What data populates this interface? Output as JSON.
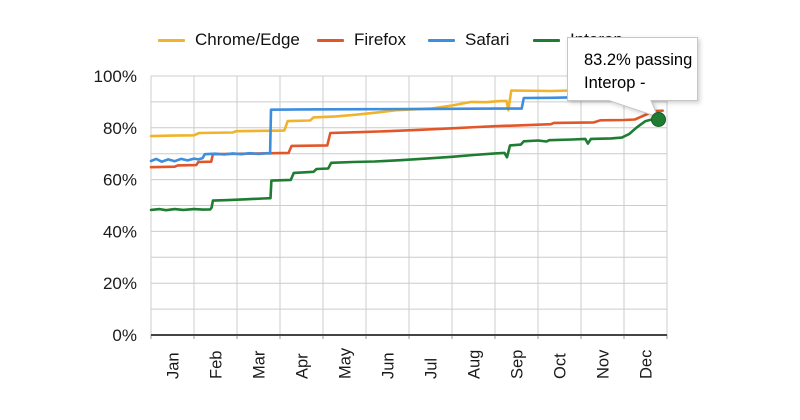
{
  "legend": {
    "items": [
      {
        "label": "Chrome/Edge",
        "color": "#F1B32B"
      },
      {
        "label": "Firefox",
        "color": "#E2572A"
      },
      {
        "label": "Safari",
        "color": "#3E8EDE"
      },
      {
        "label": "Interop",
        "color": "#1E7D32"
      }
    ]
  },
  "tooltip": {
    "line1": "83.2% passing",
    "line2": "Interop -"
  },
  "chart_data": {
    "type": "line",
    "title": "",
    "xlabel": "",
    "ylabel": "",
    "x_categories": [
      "Jan",
      "Feb",
      "Mar",
      "Apr",
      "May",
      "Jun",
      "Jul",
      "Aug",
      "Sep",
      "Oct",
      "Nov",
      "Dec"
    ],
    "y_tick_labels": [
      "0%",
      "20%",
      "40%",
      "60%",
      "80%",
      "100%"
    ],
    "y_tick_values": [
      0,
      20,
      40,
      60,
      80,
      100
    ],
    "ylim": [
      0,
      100
    ],
    "xlim_months": [
      0,
      12
    ],
    "grid": {
      "horizontal_step_pct": 10,
      "vertical_every_month": true,
      "legend_position": "top"
    },
    "series": [
      {
        "name": "Chrome/Edge",
        "color": "#F1B32B",
        "points": [
          [
            0,
            76.8
          ],
          [
            0.5,
            77.0
          ],
          [
            1.0,
            77.1
          ],
          [
            1.12,
            78.0
          ],
          [
            1.9,
            78.2
          ],
          [
            1.98,
            78.7
          ],
          [
            3.1,
            78.9
          ],
          [
            3.18,
            82.6
          ],
          [
            3.7,
            82.8
          ],
          [
            3.78,
            84.0
          ],
          [
            4.3,
            84.4
          ],
          [
            4.8,
            85.1
          ],
          [
            5.3,
            86.0
          ],
          [
            5.7,
            86.8
          ],
          [
            6.5,
            87.4
          ],
          [
            7.0,
            88.6
          ],
          [
            7.45,
            90.0
          ],
          [
            7.8,
            89.9
          ],
          [
            8.1,
            90.3
          ],
          [
            8.27,
            90.4
          ],
          [
            8.31,
            86.8
          ],
          [
            8.38,
            94.4
          ],
          [
            9.3,
            94.2
          ],
          [
            10.2,
            94.6
          ],
          [
            11.9,
            95.0
          ]
        ]
      },
      {
        "name": "Firefox",
        "color": "#E2572A",
        "points": [
          [
            0,
            64.8
          ],
          [
            0.55,
            65.0
          ],
          [
            0.62,
            65.5
          ],
          [
            1.05,
            65.6
          ],
          [
            1.1,
            66.8
          ],
          [
            1.4,
            66.9
          ],
          [
            1.44,
            69.8
          ],
          [
            2.2,
            70.0
          ],
          [
            3.2,
            70.3
          ],
          [
            3.27,
            73.0
          ],
          [
            4.1,
            73.2
          ],
          [
            4.17,
            78.0
          ],
          [
            4.8,
            78.3
          ],
          [
            5.5,
            78.7
          ],
          [
            6.2,
            79.2
          ],
          [
            7.0,
            79.8
          ],
          [
            7.6,
            80.3
          ],
          [
            8.0,
            80.6
          ],
          [
            8.7,
            81.0
          ],
          [
            9.3,
            81.4
          ],
          [
            9.37,
            81.9
          ],
          [
            10.3,
            82.1
          ],
          [
            10.45,
            82.9
          ],
          [
            11.0,
            83.0
          ],
          [
            11.25,
            83.2
          ],
          [
            11.5,
            85.0
          ],
          [
            11.7,
            86.4
          ],
          [
            11.9,
            86.6
          ]
        ]
      },
      {
        "name": "Safari",
        "color": "#3E8EDE",
        "points": [
          [
            0,
            67.2
          ],
          [
            0.12,
            68.0
          ],
          [
            0.25,
            66.9
          ],
          [
            0.4,
            67.8
          ],
          [
            0.55,
            67.1
          ],
          [
            0.7,
            68.0
          ],
          [
            0.85,
            67.4
          ],
          [
            1.0,
            68.1
          ],
          [
            1.1,
            67.8
          ],
          [
            1.2,
            68.3
          ],
          [
            1.25,
            69.8
          ],
          [
            1.5,
            70.0
          ],
          [
            1.7,
            69.7
          ],
          [
            1.9,
            70.1
          ],
          [
            2.1,
            69.8
          ],
          [
            2.3,
            70.2
          ],
          [
            2.5,
            69.9
          ],
          [
            2.7,
            70.2
          ],
          [
            2.77,
            70.1
          ],
          [
            2.79,
            87.0
          ],
          [
            3.5,
            87.1
          ],
          [
            5.0,
            87.2
          ],
          [
            6.5,
            87.3
          ],
          [
            8.0,
            87.4
          ],
          [
            8.62,
            87.4
          ],
          [
            8.67,
            91.5
          ],
          [
            9.3,
            91.6
          ],
          [
            10.0,
            91.8
          ],
          [
            11.9,
            92.2
          ]
        ]
      },
      {
        "name": "Interop",
        "color": "#1E7D32",
        "points": [
          [
            0,
            48.3
          ],
          [
            0.2,
            48.6
          ],
          [
            0.35,
            48.2
          ],
          [
            0.55,
            48.6
          ],
          [
            0.75,
            48.3
          ],
          [
            1.0,
            48.6
          ],
          [
            1.2,
            48.4
          ],
          [
            1.38,
            48.5
          ],
          [
            1.41,
            49.2
          ],
          [
            1.44,
            51.9
          ],
          [
            1.8,
            52.1
          ],
          [
            2.2,
            52.4
          ],
          [
            2.6,
            52.7
          ],
          [
            2.78,
            52.8
          ],
          [
            2.8,
            59.6
          ],
          [
            3.25,
            59.9
          ],
          [
            3.32,
            62.6
          ],
          [
            3.78,
            63.0
          ],
          [
            3.85,
            64.1
          ],
          [
            4.12,
            64.3
          ],
          [
            4.19,
            66.5
          ],
          [
            4.7,
            66.8
          ],
          [
            5.2,
            67.0
          ],
          [
            5.8,
            67.5
          ],
          [
            6.4,
            68.1
          ],
          [
            7.0,
            68.8
          ],
          [
            7.5,
            69.5
          ],
          [
            8.0,
            70.1
          ],
          [
            8.22,
            70.3
          ],
          [
            8.28,
            68.6
          ],
          [
            8.35,
            73.2
          ],
          [
            8.6,
            73.5
          ],
          [
            8.67,
            74.8
          ],
          [
            9.0,
            75.1
          ],
          [
            9.2,
            74.7
          ],
          [
            9.26,
            75.2
          ],
          [
            9.8,
            75.5
          ],
          [
            10.1,
            75.7
          ],
          [
            10.16,
            73.9
          ],
          [
            10.23,
            75.7
          ],
          [
            10.7,
            75.9
          ],
          [
            10.95,
            76.2
          ],
          [
            11.12,
            77.6
          ],
          [
            11.3,
            80.2
          ],
          [
            11.5,
            82.6
          ],
          [
            11.62,
            83.1
          ],
          [
            11.8,
            83.2
          ]
        ]
      }
    ],
    "highlight": {
      "series": "Interop",
      "x_month": 11.8,
      "value": 83.2,
      "color": "#1E7D32",
      "label": "83.2% passing",
      "sublabel": "Interop -"
    }
  }
}
